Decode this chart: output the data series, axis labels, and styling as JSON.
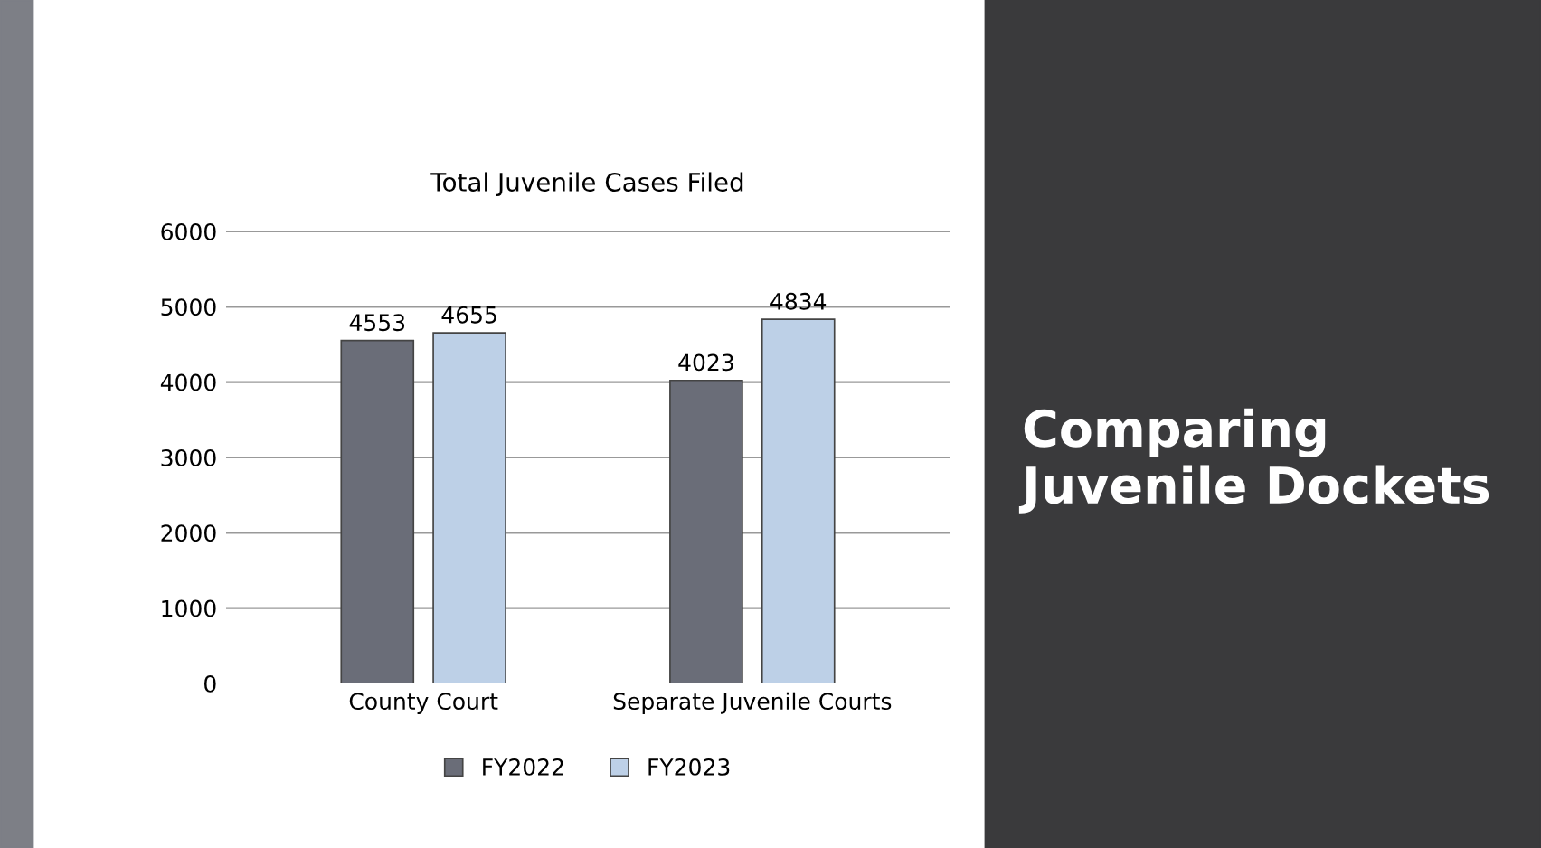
{
  "chart_data": {
    "type": "bar",
    "title": "Total Juvenile Cases Filed",
    "categories": [
      "County Court",
      "Separate Juvenile Courts"
    ],
    "series": [
      {
        "name": "FY2022",
        "color": "#6a6d78",
        "values": [
          4553,
          4023
        ]
      },
      {
        "name": "FY2023",
        "color": "#bdd0e7",
        "values": [
          4655,
          4834
        ]
      }
    ],
    "ylim": [
      0,
      6000
    ],
    "yticks": [
      0,
      1000,
      2000,
      3000,
      4000,
      5000,
      6000
    ],
    "grid": "y",
    "legend": "bottom",
    "data_labels": true,
    "annotations": [
      "Comparing Juvenile Dockets"
    ]
  }
}
